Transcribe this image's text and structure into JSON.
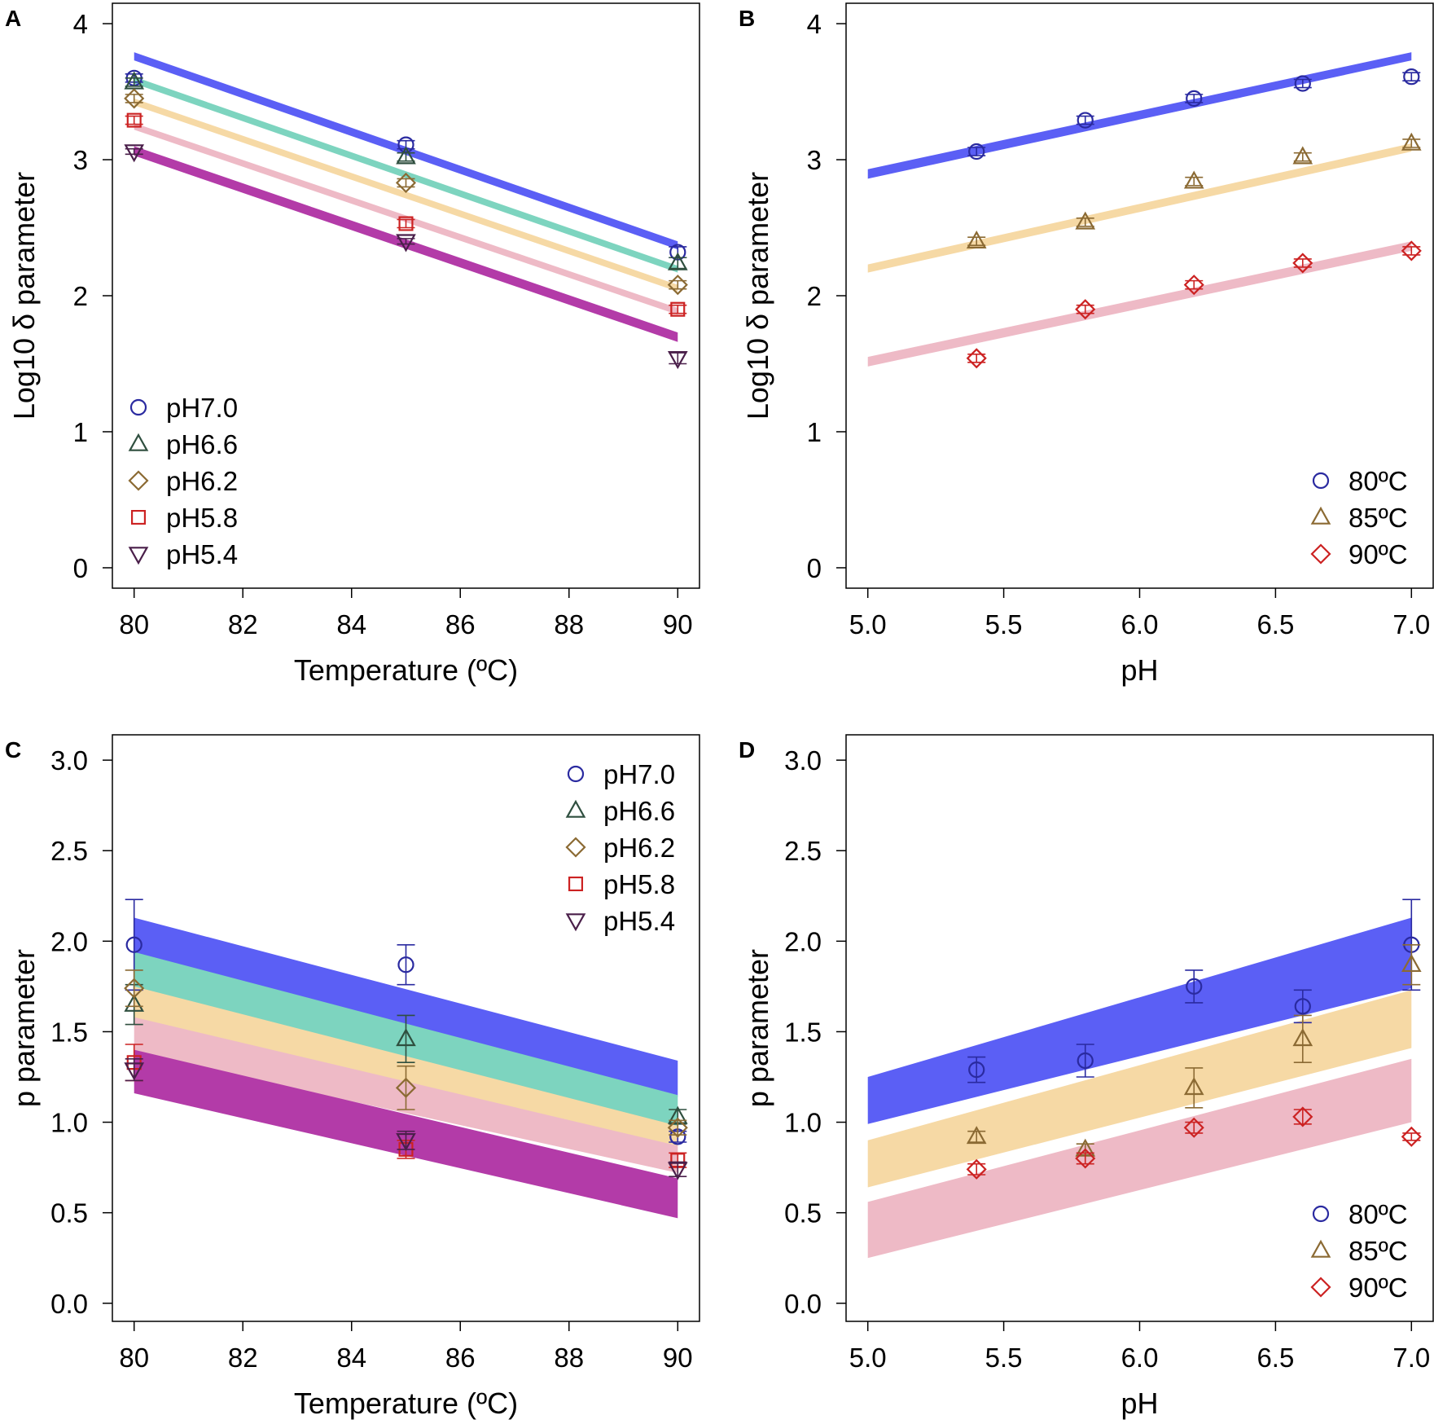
{
  "chart_data": [
    {
      "panel": "A",
      "type": "line",
      "xlabel": "Temperature (ºC)",
      "ylabel": "Log10 δ parameter",
      "xlim": [
        79.6,
        90.4
      ],
      "ylim": [
        -0.15,
        4.15
      ],
      "xticks": [
        80,
        82,
        84,
        86,
        88,
        90
      ],
      "xtick_labels": [
        "80",
        "82",
        "84",
        "86",
        "88",
        "90"
      ],
      "yticks": [
        0,
        1,
        2,
        3,
        4
      ],
      "ytick_labels": [
        "0",
        "1",
        "2",
        "3",
        "4"
      ],
      "legend_position": "bottom-left",
      "legend": [
        "pH7.0",
        "pH6.6",
        "pH6.2",
        "pH5.8",
        "pH5.4"
      ],
      "series": [
        {
          "name": "pH7.0",
          "marker": "circle",
          "color": "#2a2aa0",
          "band_color": "#5b5ff5",
          "x": [
            80,
            85,
            90
          ],
          "y": [
            3.6,
            3.11,
            2.32
          ],
          "err": [
            0.03,
            0.03,
            0.04
          ],
          "fit": {
            "x": [
              80,
              90
            ],
            "lower": [
              3.73,
              2.34
            ],
            "upper": [
              3.79,
              2.4
            ]
          }
        },
        {
          "name": "pH6.6",
          "marker": "triangle",
          "color": "#2f4f3f",
          "band_color": "#7dd4bf",
          "x": [
            80,
            85,
            90
          ],
          "y": [
            3.57,
            3.02,
            2.24
          ],
          "err": [
            0.03,
            0.03,
            0.04
          ],
          "fit": {
            "x": [
              80,
              90
            ],
            "lower": [
              3.56,
              2.17
            ],
            "upper": [
              3.61,
              2.22
            ]
          }
        },
        {
          "name": "pH6.2",
          "marker": "diamond",
          "color": "#8b6a33",
          "band_color": "#f6d9a5",
          "x": [
            80,
            85,
            90
          ],
          "y": [
            3.45,
            2.83,
            2.08
          ],
          "err": [
            0.03,
            0.03,
            0.03
          ],
          "fit": {
            "x": [
              80,
              90
            ],
            "lower": [
              3.4,
              2.03
            ],
            "upper": [
              3.45,
              2.08
            ]
          }
        },
        {
          "name": "pH5.8",
          "marker": "square",
          "color": "#cc2222",
          "band_color": "#eebac6",
          "x": [
            80,
            85,
            90
          ],
          "y": [
            3.29,
            2.53,
            1.9
          ],
          "err": [
            0.03,
            0.03,
            0.03
          ],
          "fit": {
            "x": [
              80,
              90
            ],
            "lower": [
              3.22,
              1.86
            ],
            "upper": [
              3.27,
              1.91
            ]
          }
        },
        {
          "name": "pH5.4",
          "marker": "triangle-down",
          "color": "#4a1f4a",
          "band_color": "#b33ba8",
          "x": [
            80,
            85,
            90
          ],
          "y": [
            3.06,
            2.4,
            1.54
          ],
          "err": [
            0.02,
            0.02,
            0.04
          ],
          "fit": {
            "x": [
              80,
              90
            ],
            "lower": [
              3.03,
              1.66
            ],
            "upper": [
              3.1,
              1.73
            ]
          }
        }
      ]
    },
    {
      "panel": "B",
      "type": "line",
      "xlabel": "pH",
      "ylabel": "Log10 δ parameter",
      "xlim": [
        4.92,
        7.08
      ],
      "ylim": [
        -0.15,
        4.15
      ],
      "xticks": [
        5.0,
        5.5,
        6.0,
        6.5,
        7.0
      ],
      "xtick_labels": [
        "5.0",
        "5.5",
        "6.0",
        "6.5",
        "7.0"
      ],
      "yticks": [
        0,
        1,
        2,
        3,
        4
      ],
      "ytick_labels": [
        "0",
        "1",
        "2",
        "3",
        "4"
      ],
      "legend_position": "bottom-right",
      "legend": [
        "80ºC",
        "85ºC",
        "90ºC"
      ],
      "series": [
        {
          "name": "80ºC",
          "marker": "circle",
          "color": "#2a2aa0",
          "band_color": "#5b5ff5",
          "x": [
            5.4,
            5.8,
            6.2,
            6.6,
            7.0
          ],
          "y": [
            3.06,
            3.29,
            3.45,
            3.56,
            3.61
          ],
          "err": [
            0.03,
            0.03,
            0.03,
            0.03,
            0.03
          ],
          "fit": {
            "x": [
              5.0,
              7.0
            ],
            "lower": [
              2.86,
              3.73
            ],
            "upper": [
              2.93,
              3.79
            ]
          }
        },
        {
          "name": "85ºC",
          "marker": "triangle",
          "color": "#8b6a33",
          "band_color": "#f6d9a5",
          "x": [
            5.4,
            5.8,
            6.2,
            6.6,
            7.0
          ],
          "y": [
            2.4,
            2.54,
            2.84,
            3.02,
            3.12
          ],
          "err": [
            0.03,
            0.03,
            0.03,
            0.03,
            0.03
          ],
          "fit": {
            "x": [
              5.0,
              7.0
            ],
            "lower": [
              2.17,
              3.06
            ],
            "upper": [
              2.23,
              3.12
            ]
          }
        },
        {
          "name": "90ºC",
          "marker": "diamond",
          "color": "#cc2222",
          "band_color": "#eebac6",
          "x": [
            5.4,
            5.8,
            6.2,
            6.6,
            7.0
          ],
          "y": [
            1.54,
            1.9,
            2.08,
            2.24,
            2.33
          ],
          "err": [
            0.03,
            0.03,
            0.03,
            0.03,
            0.03
          ],
          "fit": {
            "x": [
              5.0,
              7.0
            ],
            "lower": [
              1.48,
              2.33
            ],
            "upper": [
              1.55,
              2.4
            ]
          }
        }
      ]
    },
    {
      "panel": "C",
      "type": "line",
      "xlabel": "Temperature (ºC)",
      "ylabel": "p parameter",
      "xlim": [
        79.6,
        90.4
      ],
      "ylim": [
        -0.1,
        3.14
      ],
      "xticks": [
        80,
        82,
        84,
        86,
        88,
        90
      ],
      "xtick_labels": [
        "80",
        "82",
        "84",
        "86",
        "88",
        "90"
      ],
      "yticks": [
        0.0,
        0.5,
        1.0,
        1.5,
        2.0,
        2.5,
        3.0
      ],
      "ytick_labels": [
        "0.0",
        "0.5",
        "1.0",
        "1.5",
        "2.0",
        "2.5",
        "3.0"
      ],
      "legend_position": "top-right",
      "legend": [
        "pH7.0",
        "pH6.6",
        "pH6.2",
        "pH5.8",
        "pH5.4"
      ],
      "series": [
        {
          "name": "pH7.0",
          "marker": "circle",
          "color": "#2a2aa0",
          "band_color": "#5b5ff5",
          "x": [
            80,
            85,
            90
          ],
          "y": [
            1.98,
            1.87,
            0.92
          ],
          "err": [
            0.25,
            0.11,
            0.03
          ],
          "fit": {
            "x": [
              80,
              90
            ],
            "lower": [
              1.87,
              1.14
            ],
            "upper": [
              2.13,
              1.34
            ]
          }
        },
        {
          "name": "pH6.6",
          "marker": "triangle",
          "color": "#2f4f3f",
          "band_color": "#7dd4bf",
          "x": [
            80,
            85,
            90
          ],
          "y": [
            1.65,
            1.46,
            1.03
          ],
          "err": [
            0.11,
            0.13,
            0.04
          ],
          "fit": {
            "x": [
              80,
              90
            ],
            "lower": [
              1.72,
              0.95
            ],
            "upper": [
              1.94,
              1.15
            ]
          }
        },
        {
          "name": "pH6.2",
          "marker": "diamond",
          "color": "#8b6a33",
          "band_color": "#f6d9a5",
          "x": [
            80,
            85,
            90
          ],
          "y": [
            1.74,
            1.19,
            0.97
          ],
          "err": [
            0.1,
            0.12,
            0.04
          ],
          "fit": {
            "x": [
              80,
              90
            ],
            "lower": [
              1.55,
              0.83
            ],
            "upper": [
              1.75,
              0.98
            ]
          }
        },
        {
          "name": "pH5.8",
          "marker": "square",
          "color": "#cc2222",
          "band_color": "#eebac6",
          "x": [
            80,
            85,
            90
          ],
          "y": [
            1.33,
            0.85,
            0.79
          ],
          "err": [
            0.1,
            0.05,
            0.04
          ],
          "fit": {
            "x": [
              80,
              90
            ],
            "lower": [
              1.38,
              0.72
            ],
            "upper": [
              1.58,
              0.87
            ]
          }
        },
        {
          "name": "pH5.4",
          "marker": "triangle-down",
          "color": "#4a1f4a",
          "band_color": "#b33ba8",
          "x": [
            80,
            85,
            90
          ],
          "y": [
            1.29,
            0.9,
            0.74
          ],
          "err": [
            0.06,
            0.05,
            0.04
          ],
          "fit": {
            "x": [
              80,
              90
            ],
            "lower": [
              1.16,
              0.47
            ],
            "upper": [
              1.4,
              0.69
            ]
          }
        }
      ]
    },
    {
      "panel": "D",
      "type": "line",
      "xlabel": "pH",
      "ylabel": "p parameter",
      "xlim": [
        4.92,
        7.08
      ],
      "ylim": [
        -0.1,
        3.14
      ],
      "xticks": [
        5.0,
        5.5,
        6.0,
        6.5,
        7.0
      ],
      "xtick_labels": [
        "5.0",
        "5.5",
        "6.0",
        "6.5",
        "7.0"
      ],
      "yticks": [
        0.0,
        0.5,
        1.0,
        1.5,
        2.0,
        2.5,
        3.0
      ],
      "ytick_labels": [
        "0.0",
        "0.5",
        "1.0",
        "1.5",
        "2.0",
        "2.5",
        "3.0"
      ],
      "legend_position": "bottom-right",
      "legend": [
        "80ºC",
        "85ºC",
        "90ºC"
      ],
      "series": [
        {
          "name": "80ºC",
          "marker": "circle",
          "color": "#2a2aa0",
          "band_color": "#5b5ff5",
          "x": [
            5.4,
            5.8,
            6.2,
            6.6,
            7.0
          ],
          "y": [
            1.29,
            1.34,
            1.75,
            1.64,
            1.98
          ],
          "err": [
            0.07,
            0.09,
            0.09,
            0.09,
            0.25
          ],
          "fit": {
            "x": [
              5.0,
              7.0
            ],
            "lower": [
              0.99,
              1.74
            ],
            "upper": [
              1.25,
              2.13
            ]
          }
        },
        {
          "name": "85ºC",
          "marker": "triangle",
          "color": "#8b6a33",
          "band_color": "#f6d9a5",
          "x": [
            5.4,
            5.8,
            6.2,
            6.6,
            7.0
          ],
          "y": [
            0.92,
            0.85,
            1.19,
            1.46,
            1.87
          ],
          "err": [
            0.03,
            0.03,
            0.11,
            0.13,
            0.11
          ],
          "fit": {
            "x": [
              5.0,
              7.0
            ],
            "lower": [
              0.64,
              1.41
            ],
            "upper": [
              0.9,
              1.73
            ]
          }
        },
        {
          "name": "90ºC",
          "marker": "diamond",
          "color": "#cc2222",
          "band_color": "#eebac6",
          "x": [
            5.4,
            5.8,
            6.2,
            6.6,
            7.0
          ],
          "y": [
            0.74,
            0.8,
            0.97,
            1.03,
            0.92
          ],
          "err": [
            0.03,
            0.03,
            0.03,
            0.04,
            0.02
          ],
          "fit": {
            "x": [
              5.0,
              7.0
            ],
            "lower": [
              0.25,
              1.0
            ],
            "upper": [
              0.56,
              1.35
            ]
          }
        }
      ]
    }
  ]
}
